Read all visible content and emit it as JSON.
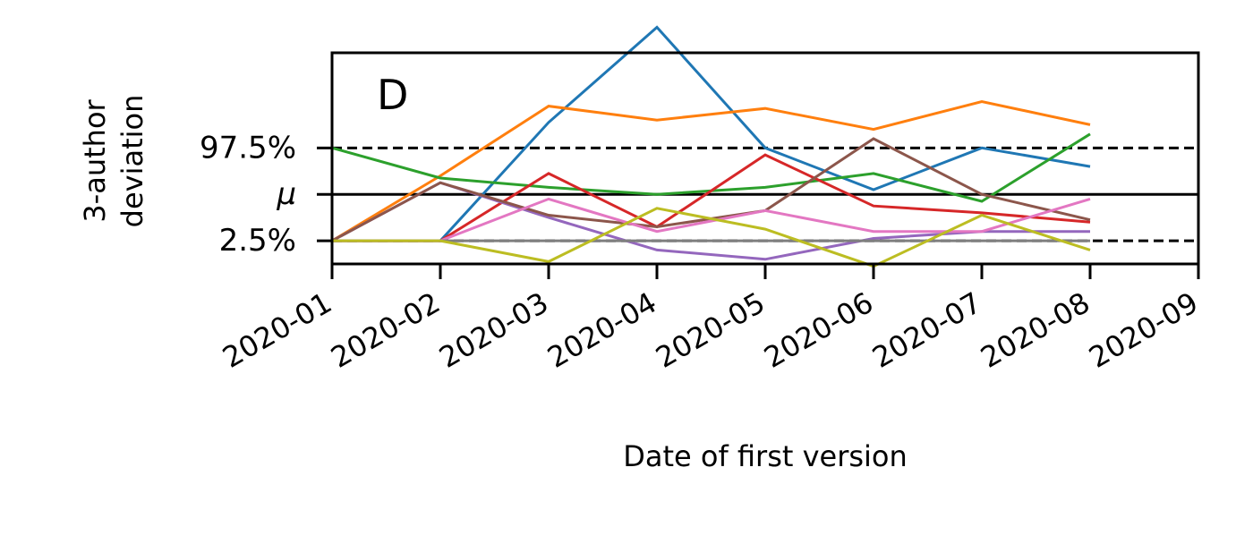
{
  "chart_data": {
    "type": "line",
    "panel_label": "D",
    "xlabel": "Date of first version",
    "ylabel_lines": [
      "3-author",
      "deviation"
    ],
    "x_ticks": [
      "2020-01",
      "2020-02",
      "2020-03",
      "2020-04",
      "2020-05",
      "2020-06",
      "2020-07",
      "2020-08",
      "2020-09"
    ],
    "x": [
      "2020-01",
      "2020-02",
      "2020-03",
      "2020-04",
      "2020-05",
      "2020-06",
      "2020-07",
      "2020-08"
    ],
    "y_ticks": [
      {
        "label": "97.5%",
        "value": 1.0
      },
      {
        "label": "μ",
        "value": 0.0
      },
      {
        "label": "2.5%",
        "value": -1.0
      }
    ],
    "xlim": [
      "2020-01",
      "2020-09"
    ],
    "ylim": [
      -1.5,
      3.05
    ],
    "reference_lines": [
      {
        "value": 1.0,
        "style": "dashed",
        "color": "#000000"
      },
      {
        "value": 0.0,
        "style": "solid",
        "color": "#000000"
      },
      {
        "value": -1.0,
        "style": "dashed",
        "color": "#000000"
      }
    ],
    "series": [
      {
        "color": "#1f77b4",
        "values": [
          -1.0,
          -1.0,
          1.55,
          3.6,
          1.0,
          0.1,
          1.0,
          0.6
        ]
      },
      {
        "color": "#ff7f0e",
        "values": [
          -1.0,
          0.4,
          1.9,
          1.6,
          1.85,
          1.4,
          2.0,
          1.5
        ]
      },
      {
        "color": "#2ca02c",
        "values": [
          1.0,
          0.35,
          0.15,
          0.0,
          0.15,
          0.45,
          -0.15,
          1.3
        ]
      },
      {
        "color": "#d62728",
        "values": [
          -1.0,
          -1.0,
          0.45,
          -0.7,
          0.85,
          -0.25,
          -0.4,
          -0.6
        ]
      },
      {
        "color": "#9467bd",
        "values": [
          -1.0,
          0.25,
          -0.5,
          -1.2,
          -1.4,
          -0.95,
          -0.8,
          -0.8
        ]
      },
      {
        "color": "#8c564b",
        "values": [
          -1.0,
          0.25,
          -0.45,
          -0.7,
          -0.35,
          1.2,
          0.0,
          -0.55
        ]
      },
      {
        "color": "#e377c2",
        "values": [
          -1.0,
          -1.0,
          -0.1,
          -0.8,
          -0.35,
          -0.8,
          -0.8,
          -0.1
        ]
      },
      {
        "color": "#7f7f7f",
        "values": [
          -1.0,
          -1.0,
          -1.0,
          -1.0,
          -1.0,
          -1.0,
          -1.0,
          -1.0
        ]
      },
      {
        "color": "#bcbd22",
        "values": [
          -1.0,
          -1.0,
          -1.45,
          -0.3,
          -0.75,
          -1.55,
          -0.45,
          -1.2
        ]
      }
    ],
    "grid": false,
    "legend": "none"
  }
}
